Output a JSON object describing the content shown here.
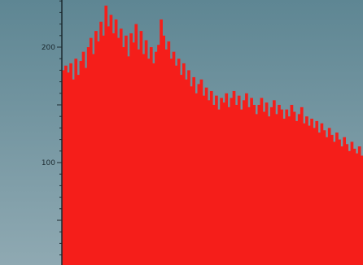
{
  "chart_data": {
    "type": "area",
    "title": "",
    "xlabel": "",
    "ylabel": "",
    "ylim": [
      0,
      256
    ],
    "yticks": [
      {
        "value": 200,
        "label": "200"
      },
      {
        "value": 100,
        "label": "100"
      }
    ],
    "grid": false,
    "legend": "none",
    "colors": {
      "fill": "#f51e1a",
      "background_top": "#5e8693",
      "background_bottom": "#8fa9b2",
      "axis": "#1c2a30"
    },
    "series": [
      {
        "values": [
          180,
          184,
          178,
          186,
          172,
          190,
          176,
          188,
          196,
          182,
          200,
          208,
          194,
          214,
          205,
          222,
          210,
          236,
          218,
          228,
          212,
          224,
          208,
          216,
          200,
          210,
          192,
          212,
          204,
          220,
          198,
          214,
          194,
          206,
          190,
          200,
          186,
          196,
          202,
          224,
          210,
          198,
          205,
          190,
          196,
          184,
          190,
          176,
          186,
          172,
          180,
          166,
          174,
          160,
          168,
          172,
          158,
          165,
          154,
          162,
          150,
          158,
          146,
          156,
          152,
          160,
          148,
          156,
          162,
          150,
          158,
          146,
          154,
          160,
          148,
          156,
          150,
          142,
          150,
          156,
          144,
          152,
          140,
          148,
          154,
          142,
          150,
          146,
          138,
          146,
          140,
          150,
          144,
          136,
          142,
          148,
          134,
          140,
          132,
          138,
          130,
          136,
          126,
          134,
          128,
          122,
          130,
          124,
          118,
          126,
          120,
          114,
          122,
          116,
          110,
          118,
          112,
          108,
          114,
          106
        ]
      }
    ]
  }
}
